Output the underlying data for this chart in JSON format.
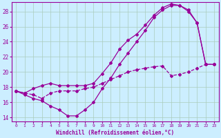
{
  "xlabel": "Windchill (Refroidissement éolien,°C)",
  "bg_color": "#cceeff",
  "grid_color": "#aaccbb",
  "line_color": "#990099",
  "xlim": [
    -0.5,
    23.5
  ],
  "ylim": [
    13.5,
    29.2
  ],
  "yticks": [
    14,
    16,
    18,
    20,
    22,
    24,
    26,
    28
  ],
  "xticks": [
    0,
    1,
    2,
    3,
    4,
    5,
    6,
    7,
    8,
    9,
    10,
    11,
    12,
    13,
    14,
    15,
    16,
    17,
    18,
    19,
    20,
    21,
    22,
    23
  ],
  "curve_dip_x": [
    0,
    1,
    2,
    3,
    4,
    5,
    6,
    7,
    8,
    9,
    10,
    11,
    12,
    13,
    14,
    15,
    16,
    17,
    18,
    19,
    20,
    21,
    22,
    23
  ],
  "curve_dip_y": [
    17.5,
    17.0,
    16.5,
    16.2,
    15.5,
    15.0,
    14.2,
    14.2,
    15.0,
    16.0,
    17.8,
    19.2,
    21.0,
    22.5,
    24.0,
    25.5,
    27.2,
    28.2,
    28.8,
    28.8,
    28.2,
    26.5,
    21.0,
    21.0
  ],
  "curve_mid_x": [
    0,
    1,
    2,
    3,
    4,
    5,
    6,
    7,
    8,
    9,
    10,
    11,
    12,
    13,
    14,
    15,
    16,
    17,
    18,
    19,
    20,
    21,
    22,
    23
  ],
  "curve_mid_y": [
    17.5,
    17.2,
    17.8,
    18.2,
    18.5,
    18.2,
    18.2,
    18.2,
    18.2,
    18.5,
    19.8,
    21.2,
    23.0,
    24.2,
    25.0,
    26.2,
    27.5,
    28.5,
    29.0,
    28.8,
    28.0,
    26.5,
    21.0,
    21.0
  ],
  "curve_low_x": [
    0,
    1,
    2,
    3,
    4,
    5,
    6,
    7,
    8,
    9,
    10,
    11,
    12,
    13,
    14,
    15,
    16,
    17,
    18,
    19,
    20,
    21,
    22,
    23
  ],
  "curve_low_y": [
    17.5,
    17.2,
    17.0,
    16.5,
    17.2,
    17.5,
    17.5,
    17.5,
    17.8,
    18.0,
    18.5,
    19.0,
    19.5,
    20.0,
    20.3,
    20.5,
    20.7,
    20.8,
    19.5,
    19.7,
    20.0,
    20.5,
    21.0,
    21.0
  ]
}
